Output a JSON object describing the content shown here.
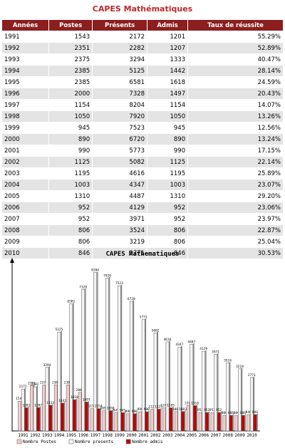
{
  "table": {
    "title": "CAPES Mathématiques",
    "header": [
      "Années",
      "Postes",
      "Présents",
      "Admis",
      "Taux de réussite"
    ],
    "rows": [
      [
        1991,
        1543,
        2172,
        1201,
        "55.29%"
      ],
      [
        1992,
        2351,
        2282,
        1207,
        "52.89%"
      ],
      [
        1993,
        2375,
        3294,
        1333,
        "40.47%"
      ],
      [
        1994,
        2385,
        5125,
        1442,
        "28.14%"
      ],
      [
        1995,
        2385,
        6581,
        1618,
        "24.59%"
      ],
      [
        1996,
        2000,
        7328,
        1497,
        "20.43%"
      ],
      [
        1997,
        1154,
        8204,
        1154,
        "14.07%"
      ],
      [
        1998,
        1050,
        7920,
        1050,
        "13.26%"
      ],
      [
        1999,
        945,
        7523,
        945,
        "12.56%"
      ],
      [
        2000,
        890,
        6720,
        890,
        "13.24%"
      ],
      [
        2001,
        990,
        5773,
        990,
        "17.15%"
      ],
      [
        2002,
        1125,
        5082,
        1125,
        "22.14%"
      ],
      [
        2003,
        1195,
        4616,
        1195,
        "25.89%"
      ],
      [
        2004,
        1003,
        4347,
        1003,
        "23.07%"
      ],
      [
        2005,
        1310,
        4487,
        1310,
        "29.20%"
      ],
      [
        2006,
        952,
        4129,
        952,
        "23.06%"
      ],
      [
        2007,
        952,
        3971,
        952,
        "23.97%"
      ],
      [
        2008,
        806,
        3524,
        806,
        "22.87%"
      ],
      [
        2009,
        806,
        3219,
        806,
        "25.04%"
      ],
      [
        2010,
        846,
        2771,
        846,
        "30.53%"
      ]
    ]
  },
  "chart_data": {
    "type": "bar",
    "title": "CAPES Mathematiques",
    "categories": [
      "1991",
      "1992",
      "1993",
      "1994",
      "1995",
      "1996",
      "1997",
      "1998",
      "1999",
      "2000",
      "2001",
      "2002",
      "2003",
      "2004",
      "2005",
      "2006",
      "2007",
      "2008",
      "2009",
      "2010"
    ],
    "series": [
      {
        "name": "Nombre Postes",
        "color": "#f4cccc",
        "values": [
          1543,
          2351,
          2375,
          2385,
          2385,
          2000,
          1154,
          1050,
          945,
          890,
          990,
          1125,
          1195,
          1003,
          1310,
          952,
          952,
          806,
          806,
          846
        ]
      },
      {
        "name": "Nombre presents",
        "color": "#f4f4f4",
        "values": [
          2172,
          2282,
          3294,
          5125,
          6581,
          7328,
          8204,
          7920,
          7523,
          6720,
          5773,
          5082,
          4616,
          4347,
          4487,
          4129,
          3971,
          3524,
          3219,
          2771
        ]
      },
      {
        "name": "Nombre admis",
        "color": "#c00000",
        "values": [
          1201,
          1207,
          1333,
          1442,
          1618,
          1497,
          1154,
          1050,
          945,
          890,
          990,
          1125,
          1195,
          1003,
          1310,
          952,
          952,
          806,
          806,
          846
        ]
      }
    ],
    "ylim": [
      0,
      8600
    ],
    "legend": "bottom"
  }
}
